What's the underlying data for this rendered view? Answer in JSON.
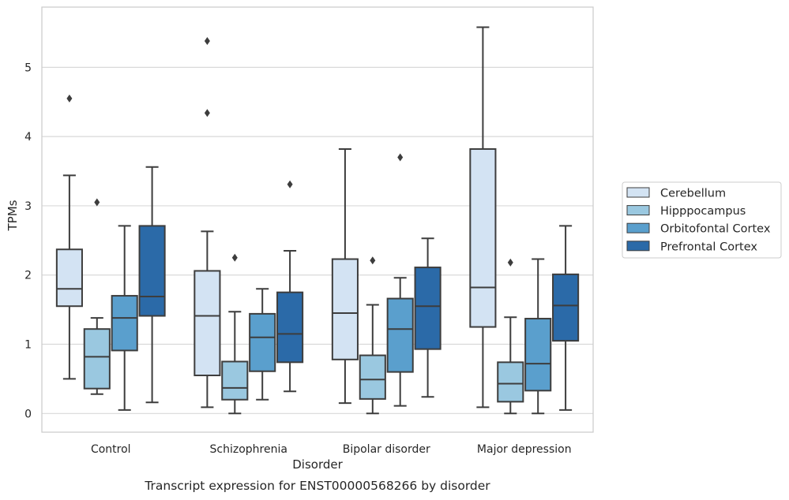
{
  "chart_data": {
    "type": "box",
    "caption": "Transcript expression for ENST00000568266 by disorder",
    "xlabel": "Disorder",
    "ylabel": "TPMs",
    "ylim": [
      -0.27,
      5.87
    ],
    "yticks": [
      0,
      1,
      2,
      3,
      4,
      5
    ],
    "grid": "horizontal",
    "legend_placement": "right",
    "categories": [
      "Control",
      "Schizophrenia",
      "Bipolar disorder",
      "Major depression"
    ],
    "series": [
      {
        "name": "Cerebellum",
        "color": "#d3e3f3",
        "boxes": [
          {
            "whislo": 0.5,
            "q1": 1.55,
            "med": 1.8,
            "q3": 2.37,
            "whishi": 3.44,
            "fliers": [
              4.55
            ]
          },
          {
            "whislo": 0.09,
            "q1": 0.55,
            "med": 1.41,
            "q3": 2.06,
            "whishi": 2.63,
            "fliers": [
              5.38,
              4.34
            ]
          },
          {
            "whislo": 0.15,
            "q1": 0.78,
            "med": 1.45,
            "q3": 2.23,
            "whishi": 3.82,
            "fliers": []
          },
          {
            "whislo": 0.09,
            "q1": 1.25,
            "med": 1.82,
            "q3": 3.82,
            "whishi": 5.58,
            "fliers": []
          }
        ]
      },
      {
        "name": "Hipppocampus",
        "color": "#9ac8e0",
        "boxes": [
          {
            "whislo": 0.28,
            "q1": 0.36,
            "med": 0.82,
            "q3": 1.22,
            "whishi": 1.38,
            "fliers": [
              3.05
            ]
          },
          {
            "whislo": 0.0,
            "q1": 0.2,
            "med": 0.37,
            "q3": 0.75,
            "whishi": 1.47,
            "fliers": [
              2.25
            ]
          },
          {
            "whislo": 0.0,
            "q1": 0.21,
            "med": 0.49,
            "q3": 0.84,
            "whishi": 1.57,
            "fliers": [
              2.21
            ]
          },
          {
            "whislo": 0.0,
            "q1": 0.17,
            "med": 0.43,
            "q3": 0.74,
            "whishi": 1.39,
            "fliers": [
              2.18
            ]
          }
        ]
      },
      {
        "name": "Orbitofontal Cortex",
        "color": "#5a9fcd",
        "boxes": [
          {
            "whislo": 0.05,
            "q1": 0.91,
            "med": 1.38,
            "q3": 1.7,
            "whishi": 2.71,
            "fliers": []
          },
          {
            "whislo": 0.2,
            "q1": 0.61,
            "med": 1.1,
            "q3": 1.44,
            "whishi": 1.8,
            "fliers": []
          },
          {
            "whislo": 0.11,
            "q1": 0.6,
            "med": 1.22,
            "q3": 1.66,
            "whishi": 1.96,
            "fliers": [
              3.7
            ]
          },
          {
            "whislo": 0.0,
            "q1": 0.33,
            "med": 0.72,
            "q3": 1.37,
            "whishi": 2.23,
            "fliers": []
          }
        ]
      },
      {
        "name": "Prefrontal Cortex",
        "color": "#2b6aa8",
        "boxes": [
          {
            "whislo": 0.16,
            "q1": 1.41,
            "med": 1.69,
            "q3": 2.71,
            "whishi": 3.56,
            "fliers": []
          },
          {
            "whislo": 0.32,
            "q1": 0.74,
            "med": 1.15,
            "q3": 1.75,
            "whishi": 2.35,
            "fliers": [
              3.31
            ]
          },
          {
            "whislo": 0.24,
            "q1": 0.93,
            "med": 1.55,
            "q3": 2.11,
            "whishi": 2.53,
            "fliers": []
          },
          {
            "whislo": 0.05,
            "q1": 1.05,
            "med": 1.56,
            "q3": 2.01,
            "whishi": 2.71,
            "fliers": []
          }
        ]
      }
    ]
  }
}
